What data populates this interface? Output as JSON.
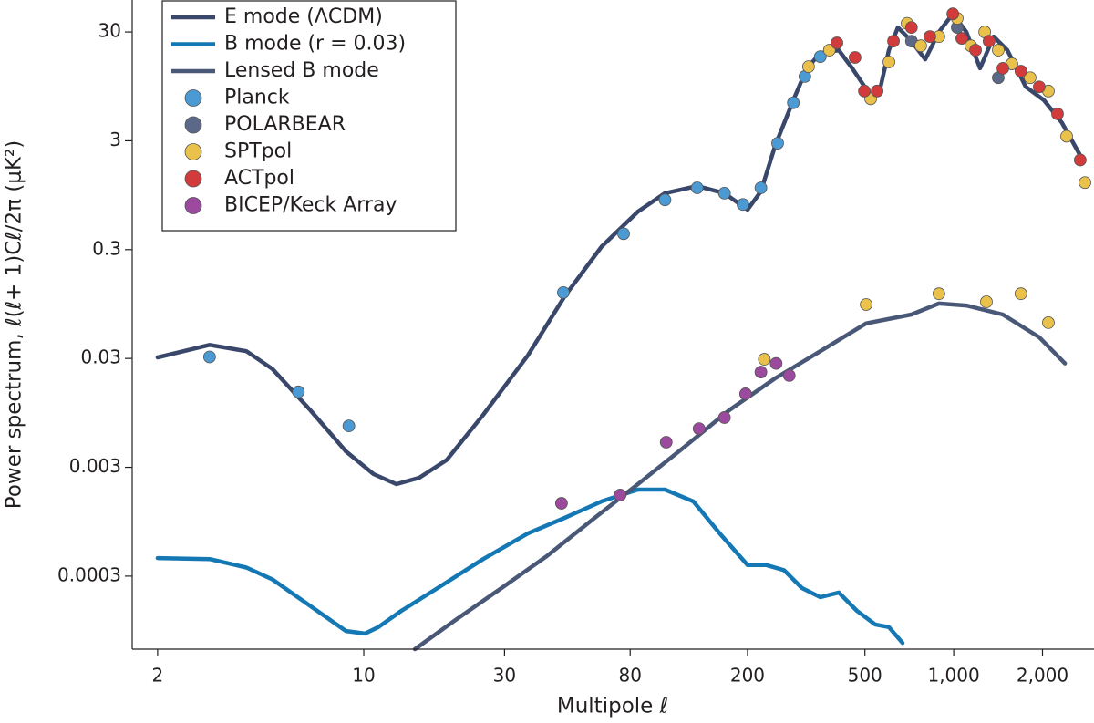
{
  "chart_data": {
    "type": "line",
    "xlabel": "Multipole ℓ",
    "ylabel": "Power spectrum, ℓ(ℓ+ 1)Cℓ/2π (μK²)",
    "xscale": "log",
    "yscale": "log",
    "xlim": [
      1.64,
      2990
    ],
    "ylim": [
      6.4e-05,
      59
    ],
    "xticks": [
      2,
      10,
      30,
      80,
      200,
      500,
      {
        "value": 1000,
        "label": "1,000"
      },
      {
        "value": 2000,
        "label": "2,000"
      }
    ],
    "yticks": [
      0.0003,
      0.003,
      0.03,
      0.3,
      3,
      30
    ],
    "legend": "upper-left",
    "series": [
      {
        "name": "E mode (ΛCDM)",
        "type": "line",
        "color": "#39476a",
        "x": [
          2,
          3.0,
          4.0,
          4.9,
          6.6,
          8.7,
          10.8,
          12.9,
          15.4,
          19.1,
          25.4,
          36,
          48,
          64,
          85,
          105,
          135,
          167,
          200,
          222,
          248,
          286,
          318,
          353,
          408,
          453,
          523,
          561,
          603,
          647,
          719,
          801,
          891,
          993,
          1104,
          1228,
          1366,
          1521,
          1633,
          1754,
          2022,
          2328,
          2685
        ],
        "values": [
          0.0307,
          0.04,
          0.035,
          0.024,
          0.01,
          0.0042,
          0.0026,
          0.0021,
          0.0024,
          0.0035,
          0.0091,
          0.032,
          0.112,
          0.32,
          0.67,
          0.99,
          1.15,
          0.99,
          0.7,
          1.03,
          2.7,
          7.1,
          13.9,
          19.2,
          20.4,
          13.9,
          7.8,
          8.6,
          20.4,
          33,
          24.7,
          16.8,
          30,
          44,
          30,
          13.9,
          27.2,
          20.4,
          13.9,
          9.4,
          7.1,
          4.4,
          2.2
        ]
      },
      {
        "name": "B mode (r = 0.03)",
        "type": "line",
        "color": "#1478b4",
        "x": [
          2,
          3.0,
          4.0,
          4.9,
          6.6,
          8.7,
          10.1,
          11.2,
          13.4,
          17.8,
          25.4,
          36,
          48,
          64,
          85,
          105,
          131,
          161,
          200,
          231,
          266,
          306,
          353,
          408,
          470,
          542,
          603,
          671
        ],
        "values": [
          0.00044,
          0.00043,
          0.00036,
          0.00028,
          0.000159,
          9.4e-05,
          8.9e-05,
          0.000102,
          0.000144,
          0.000233,
          0.00043,
          0.00074,
          0.00103,
          0.00146,
          0.00187,
          0.00187,
          0.00146,
          0.00074,
          0.00038,
          0.00038,
          0.00034,
          0.000233,
          0.000192,
          0.000212,
          0.000144,
          0.000108,
          0.000102,
          7.3e-05
        ]
      },
      {
        "name": "Lensed B mode",
        "type": "line",
        "color": "#4a5877",
        "x": [
          14.9,
          20.5,
          29.3,
          41.8,
          59.6,
          85,
          122,
          173,
          248,
          353,
          505,
          719,
          891,
          1104,
          1468,
          1950,
          2382
        ],
        "values": [
          6.4e-05,
          0.000119,
          0.000233,
          0.00046,
          0.00099,
          0.0021,
          0.0046,
          0.01,
          0.0197,
          0.035,
          0.063,
          0.076,
          0.096,
          0.092,
          0.076,
          0.047,
          0.027
        ]
      },
      {
        "name": "Planck",
        "type": "scatter",
        "color": "#4b9ad3",
        "x": [
          3.0,
          6.0,
          8.9,
          47.5,
          76,
          105,
          135,
          167,
          193,
          222,
          253,
          286,
          313,
          353
        ],
        "values": [
          0.031,
          0.0148,
          0.0072,
          0.121,
          0.42,
          0.86,
          1.11,
          0.99,
          0.78,
          1.11,
          2.85,
          6.7,
          11.7,
          17.8
        ]
      },
      {
        "name": "POLARBEAR",
        "type": "scatter",
        "color": "#5b6888",
        "x": [
          719,
          1028,
          1416,
          1574
        ],
        "values": [
          24.7,
          33,
          11.4,
          15.3
        ]
      },
      {
        "name": "SPTpol",
        "type": "scatter",
        "color": "#e9c14b",
        "x": [
          228,
          505,
          891,
          1291,
          1690,
          2094,
          322,
          379,
          523,
          603,
          695,
          773,
          891,
          1028,
          1143,
          1274,
          1416,
          1574,
          1816,
          2094,
          2415,
          2786
        ],
        "values": [
          0.0295,
          0.094,
          0.118,
          0.0995,
          0.118,
          0.064,
          14.4,
          20.4,
          7.3,
          15.9,
          36,
          22.4,
          27.2,
          40,
          22.4,
          30,
          20.4,
          15.3,
          11.4,
          8.6,
          3.3,
          1.24
        ]
      },
      {
        "name": "ACTpol",
        "type": "scatter",
        "color": "#d23b3b",
        "x": [
          402,
          463,
          498,
          550,
          625,
          719,
          830,
          993,
          1065,
          1186,
          1318,
          1468,
          1690,
          1950,
          2249,
          2685
        ],
        "values": [
          23.8,
          17.5,
          8.6,
          8.6,
          24.7,
          33,
          27.2,
          44,
          26.2,
          20.4,
          24.7,
          13.9,
          13.1,
          9.4,
          5.3,
          2.0
        ]
      },
      {
        "name": "BICEP/Keck Array",
        "type": "scatter",
        "color": "#9b4a9e",
        "x": [
          46.8,
          74,
          106,
          137,
          167,
          197,
          222,
          250,
          277
        ],
        "values": [
          0.0014,
          0.00167,
          0.0051,
          0.0068,
          0.0086,
          0.0142,
          0.0225,
          0.027,
          0.0209
        ]
      }
    ]
  }
}
